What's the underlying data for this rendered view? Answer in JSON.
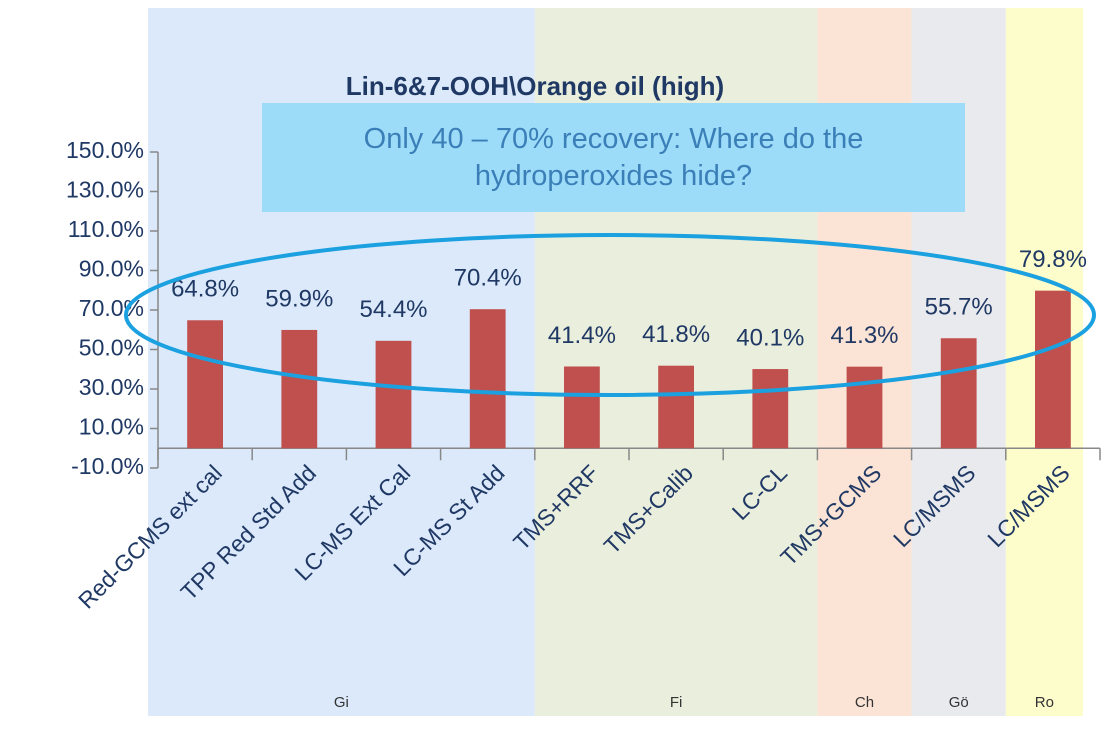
{
  "chart_data": {
    "type": "bar",
    "title": "Lin-6&7-OOH\\Orange oil (high)",
    "annotation": "Only 40 – 70% recovery: Where do the hydroperoxides hide?",
    "categories": [
      "Red-GCMS ext cal",
      "TPP Red Std Add",
      "LC-MS Ext Cal",
      "LC-MS St Add",
      "TMS+RRF",
      "TMS+Calib",
      "LC-CL",
      "TMS+GCMS",
      "LC/MSMS",
      "LC/MSMS"
    ],
    "values": [
      64.8,
      59.9,
      54.4,
      70.4,
      41.4,
      41.8,
      40.1,
      41.3,
      55.7,
      79.8
    ],
    "value_labels": [
      "64.8%",
      "59.9%",
      "54.4%",
      "70.4%",
      "41.4%",
      "41.8%",
      "40.1%",
      "41.3%",
      "55.7%",
      "79.8%"
    ],
    "color": "#c0504d",
    "groups": [
      {
        "name": "Gi",
        "size": 4,
        "color": "#dbe9fa"
      },
      {
        "name": "Fi",
        "size": 3,
        "color": "#eaeedd"
      },
      {
        "name": "Ch",
        "size": 1,
        "color": "#fbe4d5"
      },
      {
        "name": "Gö",
        "size": 1,
        "color": "#e9eaee"
      },
      {
        "name": "Ro",
        "size": 1,
        "color": "#fdfccb"
      }
    ],
    "ylim": [
      -10,
      150
    ],
    "yticks": [
      {
        "value": -10,
        "label": "-10.0%"
      },
      {
        "value": 10,
        "label": "10.0%"
      },
      {
        "value": 30,
        "label": "30.0%"
      },
      {
        "value": 50,
        "label": "50.0%"
      },
      {
        "value": 70,
        "label": "70.0%"
      },
      {
        "value": 90,
        "label": "90.0%"
      },
      {
        "value": 110,
        "label": "110.0%"
      },
      {
        "value": 130,
        "label": "130.0%"
      },
      {
        "value": 150,
        "label": "150.0%"
      }
    ],
    "grid": false
  }
}
